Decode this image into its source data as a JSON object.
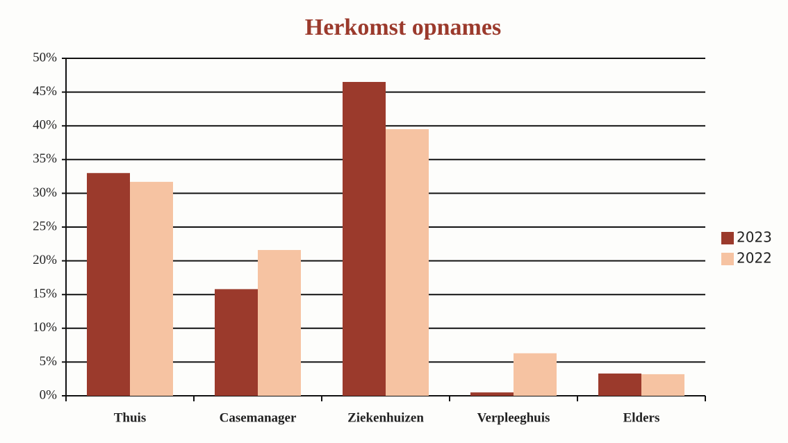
{
  "chart_data": {
    "type": "bar",
    "title": "Herkomst opnames",
    "categories": [
      "Thuis",
      "Casemanager",
      "Ziekenhuizen",
      "Verpleeghuis",
      "Elders"
    ],
    "series": [
      {
        "name": "2023",
        "color": "#9b3a2c",
        "values": [
          33,
          15.8,
          46.5,
          0.5,
          3.3
        ]
      },
      {
        "name": "2022",
        "color": "#f6c3a2",
        "values": [
          31.7,
          21.6,
          39.5,
          6.3,
          3.2
        ]
      }
    ],
    "ylim": [
      0,
      50
    ],
    "yticks": [
      {
        "value": 0,
        "label": "0%"
      },
      {
        "value": 5,
        "label": "5%"
      },
      {
        "value": 10,
        "label": "10%"
      },
      {
        "value": 15,
        "label": "15%"
      },
      {
        "value": 20,
        "label": "20%"
      },
      {
        "value": 25,
        "label": "25%"
      },
      {
        "value": 30,
        "label": "30%"
      },
      {
        "value": 35,
        "label": "35%"
      },
      {
        "value": 40,
        "label": "40%"
      },
      {
        "value": 45,
        "label": "45%"
      },
      {
        "value": 50,
        "label": "50%"
      }
    ],
    "grid": true,
    "legend": "right"
  }
}
